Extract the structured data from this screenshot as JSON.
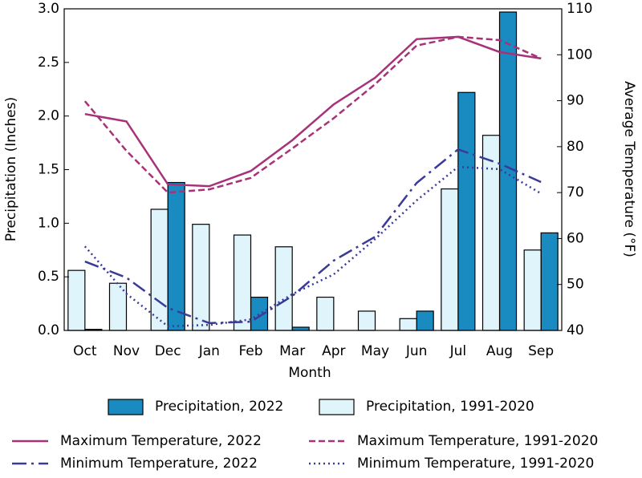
{
  "chart_data": {
    "type": "bar",
    "xlabel": "Month",
    "ylabel": "Precipitation (Inches)",
    "y2label": "Average Temperature (°F)",
    "categories": [
      "Oct",
      "Nov",
      "Dec",
      "Jan",
      "Feb",
      "Mar",
      "Apr",
      "May",
      "Jun",
      "Jul",
      "Aug",
      "Sep"
    ],
    "ylim": [
      0,
      3
    ],
    "yticks": [
      {
        "value": 0,
        "label": "0.0"
      },
      0.5,
      {
        "value": 1,
        "label": "1.0"
      },
      1.5,
      {
        "value": 2,
        "label": "2.0"
      },
      2.5,
      {
        "value": 3,
        "label": "3.0"
      }
    ],
    "y2lim": [
      40,
      110
    ],
    "y2ticks": [
      40,
      50,
      60,
      70,
      80,
      90,
      100,
      110
    ],
    "series": [
      {
        "name": "Precipitation, 2022",
        "type": "bar",
        "color": "#1a8bc0",
        "values": [
          0.01,
          0,
          1.38,
          0,
          0.31,
          0.03,
          0,
          0,
          0.18,
          2.22,
          2.97,
          0.91
        ]
      },
      {
        "name": "Precipitation, 1991-2020",
        "type": "bar",
        "color": "#e0f4fb",
        "values": [
          0.56,
          0.44,
          1.13,
          0.99,
          0.89,
          0.78,
          0.31,
          0.18,
          0.11,
          1.32,
          1.82,
          0.75
        ]
      },
      {
        "name": "Maximum Temperature, 2022",
        "type": "line",
        "axis": "y2",
        "color": "#a83279",
        "linestyle": "solid",
        "values": [
          87.1,
          85.5,
          71.8,
          71.4,
          74.7,
          81.4,
          89.2,
          95.0,
          103.4,
          103.9,
          100.6,
          99.2
        ]
      },
      {
        "name": "Maximum Temperature, 1991-2020",
        "type": "line",
        "axis": "y2",
        "color": "#a83279",
        "linestyle": "dashed",
        "values": [
          89.9,
          79.1,
          70.0,
          70.7,
          73.2,
          79.6,
          86.2,
          93.6,
          102.0,
          103.9,
          103.2,
          99.2
        ]
      },
      {
        "name": "Minimum Temperature, 2022",
        "type": "line",
        "axis": "y2",
        "color": "#3a3a98",
        "linestyle": "dashdot",
        "values": [
          55.0,
          51.5,
          44.9,
          41.6,
          41.9,
          47.5,
          55.2,
          60.4,
          72.1,
          79.4,
          76.3,
          72.3
        ]
      },
      {
        "name": "Minimum Temperature, 1991-2020",
        "type": "line",
        "axis": "y2",
        "color": "#3a3a98",
        "linestyle": "dotted",
        "values": [
          58.3,
          48.0,
          40.9,
          41.2,
          42.4,
          47.9,
          52.2,
          59.9,
          68.3,
          75.6,
          75.1,
          69.8
        ]
      }
    ]
  }
}
